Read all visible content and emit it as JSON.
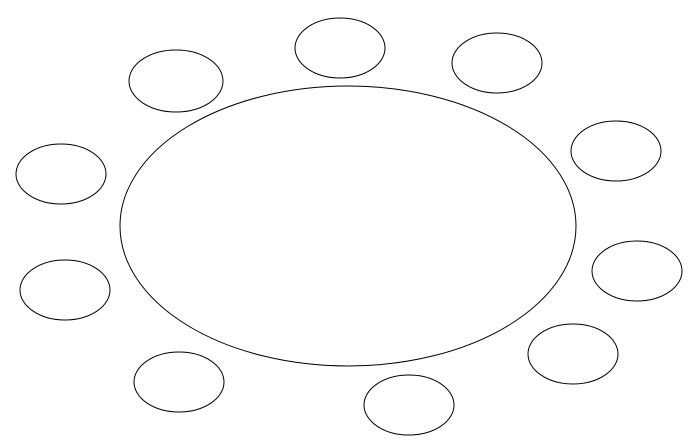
{
  "diagram": {
    "central_shape": "ellipse",
    "satellite_shape": "ellipse",
    "satellite_count": 10,
    "stroke_color": "#000000",
    "background_color": "#ffffff"
  }
}
